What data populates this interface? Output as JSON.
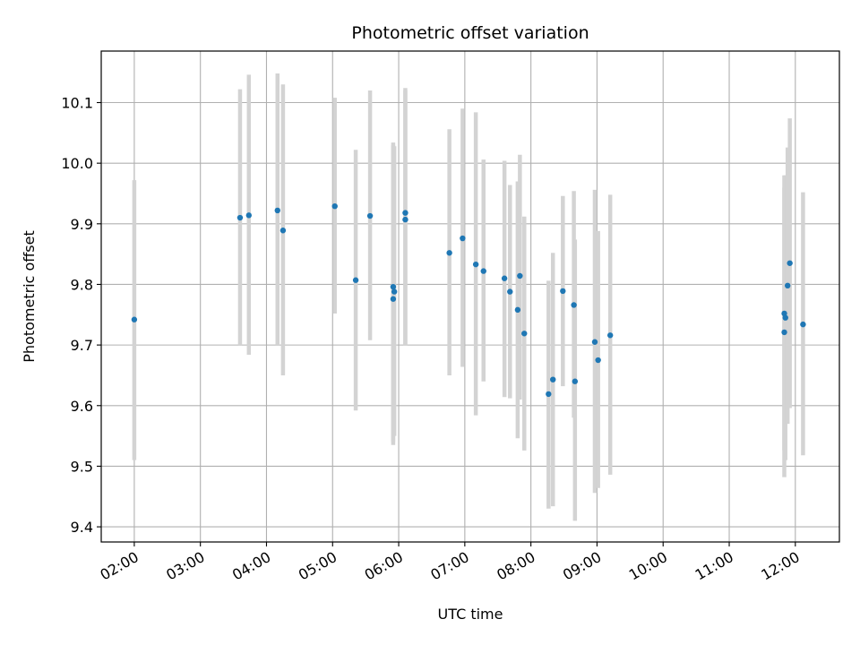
{
  "chart_data": {
    "type": "scatter",
    "title": "Photometric offset variation",
    "xlabel": "UTC time",
    "ylabel": "Photometric offset",
    "x_axis_kind": "time",
    "xlim": [
      "01:30",
      "12:40"
    ],
    "ylim": [
      9.375,
      10.185
    ],
    "x_ticks": [
      "02:00",
      "03:00",
      "04:00",
      "05:00",
      "06:00",
      "07:00",
      "08:00",
      "09:00",
      "10:00",
      "11:00",
      "12:00"
    ],
    "y_ticks": [
      9.4,
      9.5,
      9.6,
      9.7,
      9.8,
      9.9,
      10.0,
      10.1
    ],
    "y_tick_labels": [
      "9.4",
      "9.5",
      "9.6",
      "9.7",
      "9.8",
      "9.9",
      "10.0",
      "10.1"
    ],
    "grid": true,
    "legend": "none",
    "marker_color": "#1f77b4",
    "errorbar_color": "#d3d3d3",
    "points": [
      {
        "t": "02:00",
        "y": 9.742,
        "lo": 9.51,
        "hi": 9.972
      },
      {
        "t": "03:36",
        "y": 9.91,
        "lo": 9.7,
        "hi": 10.122
      },
      {
        "t": "03:44",
        "y": 9.914,
        "lo": 9.684,
        "hi": 10.146
      },
      {
        "t": "04:10",
        "y": 9.922,
        "lo": 9.7,
        "hi": 10.148
      },
      {
        "t": "04:15",
        "y": 9.889,
        "lo": 9.65,
        "hi": 10.13
      },
      {
        "t": "05:02",
        "y": 9.929,
        "lo": 9.752,
        "hi": 10.108
      },
      {
        "t": "05:21",
        "y": 9.807,
        "lo": 9.592,
        "hi": 10.022
      },
      {
        "t": "05:34",
        "y": 9.913,
        "lo": 9.708,
        "hi": 10.12
      },
      {
        "t": "05:55",
        "y": 9.796,
        "lo": 9.54,
        "hi": 10.034
      },
      {
        "t": "05:55",
        "y": 9.776,
        "lo": 9.535,
        "hi": 10.03
      },
      {
        "t": "05:56",
        "y": 9.788,
        "lo": 9.55,
        "hi": 10.028
      },
      {
        "t": "06:06",
        "y": 9.918,
        "lo": 9.7,
        "hi": 10.124
      },
      {
        "t": "06:06",
        "y": 9.907,
        "lo": 9.7,
        "hi": 10.12
      },
      {
        "t": "06:46",
        "y": 9.852,
        "lo": 9.65,
        "hi": 10.056
      },
      {
        "t": "06:58",
        "y": 9.876,
        "lo": 9.664,
        "hi": 10.09
      },
      {
        "t": "07:10",
        "y": 9.833,
        "lo": 9.584,
        "hi": 10.084
      },
      {
        "t": "07:17",
        "y": 9.822,
        "lo": 9.64,
        "hi": 10.006
      },
      {
        "t": "07:36",
        "y": 9.81,
        "lo": 9.614,
        "hi": 10.004
      },
      {
        "t": "07:41",
        "y": 9.788,
        "lo": 9.612,
        "hi": 9.964
      },
      {
        "t": "07:48",
        "y": 9.758,
        "lo": 9.546,
        "hi": 9.97
      },
      {
        "t": "07:50",
        "y": 9.814,
        "lo": 9.61,
        "hi": 10.014
      },
      {
        "t": "07:54",
        "y": 9.719,
        "lo": 9.526,
        "hi": 9.912
      },
      {
        "t": "08:16",
        "y": 9.619,
        "lo": 9.43,
        "hi": 9.806
      },
      {
        "t": "08:20",
        "y": 9.643,
        "lo": 9.434,
        "hi": 9.852
      },
      {
        "t": "08:29",
        "y": 9.789,
        "lo": 9.632,
        "hi": 9.946
      },
      {
        "t": "08:39",
        "y": 9.766,
        "lo": 9.58,
        "hi": 9.954
      },
      {
        "t": "08:40",
        "y": 9.64,
        "lo": 9.41,
        "hi": 9.874
      },
      {
        "t": "08:58",
        "y": 9.705,
        "lo": 9.456,
        "hi": 9.956
      },
      {
        "t": "09:01",
        "y": 9.675,
        "lo": 9.464,
        "hi": 9.888
      },
      {
        "t": "09:12",
        "y": 9.716,
        "lo": 9.486,
        "hi": 9.948
      },
      {
        "t": "11:50",
        "y": 9.752,
        "lo": 9.526,
        "hi": 9.98
      },
      {
        "t": "11:50",
        "y": 9.721,
        "lo": 9.482,
        "hi": 9.96
      },
      {
        "t": "11:51",
        "y": 9.745,
        "lo": 9.51,
        "hi": 9.98
      },
      {
        "t": "11:53",
        "y": 9.798,
        "lo": 9.57,
        "hi": 10.026
      },
      {
        "t": "11:55",
        "y": 9.835,
        "lo": 9.596,
        "hi": 10.074
      },
      {
        "t": "12:07",
        "y": 9.734,
        "lo": 9.518,
        "hi": 9.952
      }
    ]
  }
}
